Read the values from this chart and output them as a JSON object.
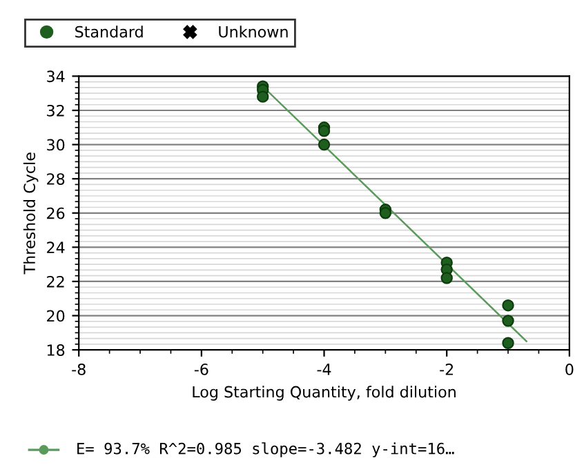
{
  "chart_data": {
    "type": "scatter",
    "xlabel": "Log Starting Quantity, fold dilution",
    "ylabel": "Threshold Cycle",
    "xlim": [
      -8,
      0
    ],
    "ylim": [
      18,
      34
    ],
    "xticks": [
      -8,
      -6,
      -4,
      -2,
      0
    ],
    "yticks": [
      18,
      20,
      22,
      24,
      26,
      28,
      30,
      32,
      34
    ],
    "grid": "y",
    "legend": "top left",
    "annotations": [
      "E= 93.7% R^2=0.985 slope=-3.482 y-int=16…"
    ],
    "series": [
      {
        "name": "Standard",
        "marker": "circle",
        "color": "#1e5e1e",
        "x": [
          -5,
          -5,
          -5,
          -4,
          -4,
          -4,
          -3,
          -3,
          -2,
          -2,
          -2,
          -1,
          -1,
          -1
        ],
        "values": [
          33.4,
          33.2,
          32.8,
          31.0,
          30.8,
          30.0,
          26.2,
          26.0,
          23.1,
          22.7,
          22.2,
          20.6,
          19.7,
          18.4
        ]
      },
      {
        "name": "Unknown",
        "marker": "cross",
        "color": "#000000"
      },
      {
        "type": "line",
        "color": "#5a9a5a",
        "x": [
          -5,
          -0.7
        ],
        "values": [
          33.4,
          18.5
        ]
      }
    ]
  }
}
